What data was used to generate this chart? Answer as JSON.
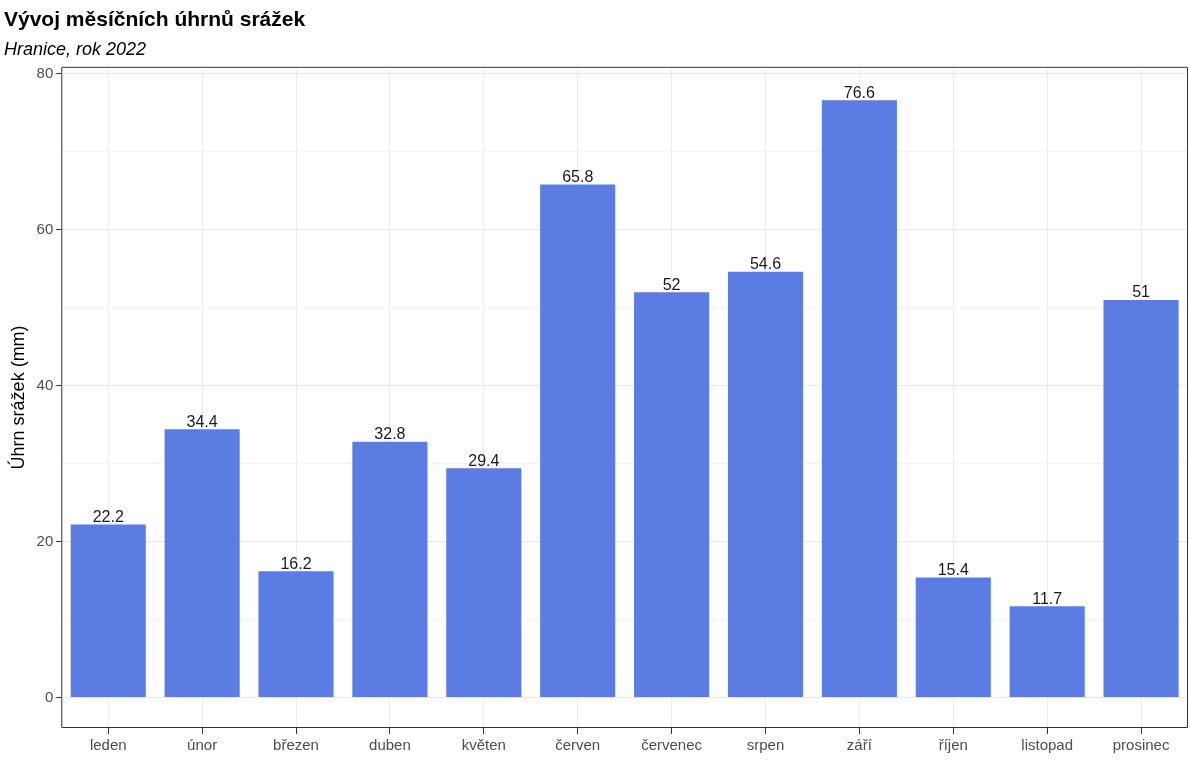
{
  "chart_data": {
    "type": "bar",
    "title": "Vývoj měsíčních úhrnů srážek",
    "subtitle": "Hranice, rok 2022",
    "ylabel": "Úhrn srážek (mm)",
    "categories": [
      "leden",
      "únor",
      "březen",
      "duben",
      "květen",
      "červen",
      "červenec",
      "srpen",
      "září",
      "říjen",
      "listopad",
      "prosinec"
    ],
    "values": [
      22.2,
      34.4,
      16.2,
      32.8,
      29.4,
      65.8,
      52,
      54.6,
      76.6,
      15.4,
      11.7,
      51
    ],
    "color": "#5b7de3",
    "ylim": [
      -3.9,
      80.9
    ],
    "yticks": [
      0,
      {
        "value": 10,
        "label": null
      },
      20,
      {
        "value": 30,
        "label": null
      },
      40,
      {
        "value": 50,
        "label": null
      },
      60,
      {
        "value": 70,
        "label": null
      },
      80
    ],
    "grid": true,
    "legend": false,
    "data_labels": true
  }
}
